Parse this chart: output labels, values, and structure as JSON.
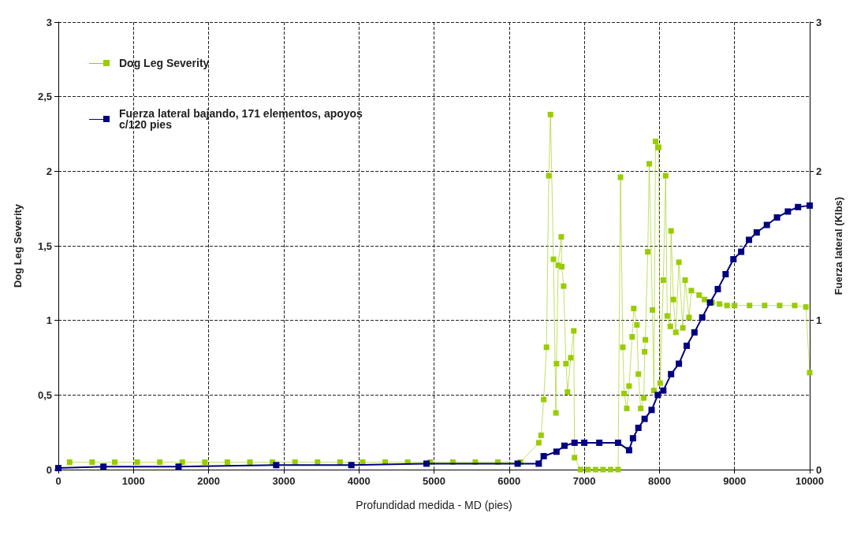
{
  "chart_data": {
    "type": "line",
    "xlabel": "Profundidad medida - MD (pies)",
    "ylabel": "Dog Leg Severity",
    "y2label": "Fuerza lateral (Klbs)",
    "xlim": [
      0,
      10000
    ],
    "xticks": [
      0,
      1000,
      2000,
      3000,
      4000,
      5000,
      6000,
      7000,
      8000,
      9000,
      10000
    ],
    "ylim": [
      0,
      3
    ],
    "yticks": [
      0,
      {
        "value": 0.5,
        "label": "0,5"
      },
      1,
      {
        "value": 1.5,
        "label": "1,5"
      },
      2,
      {
        "value": 2.5,
        "label": "2,5"
      },
      3
    ],
    "y2lim": [
      0,
      3
    ],
    "y2ticks": [
      0,
      1,
      2,
      3
    ],
    "grid": true,
    "legend": "top left",
    "marker": "square",
    "line_style": "solid",
    "series": [
      {
        "name": "Dog Leg Severity",
        "color": "#99cc00",
        "x": [
          150,
          450,
          750,
          1050,
          1350,
          1650,
          1950,
          2250,
          2550,
          2850,
          3150,
          3450,
          3750,
          4050,
          4350,
          4650,
          4950,
          5250,
          5550,
          5850,
          6150,
          6394,
          6425,
          6460,
          6497,
          6528,
          6550,
          6590,
          6622,
          6630,
          6653,
          6694,
          6700,
          6725,
          6756,
          6777,
          6820,
          6860,
          6870,
          6950,
          7050,
          7150,
          7250,
          7350,
          7450,
          7482,
          7513,
          7530,
          7565,
          7596,
          7637,
          7658,
          7700,
          7720,
          7751,
          7793,
          7803,
          7813,
          7845,
          7865,
          7907,
          7927,
          7948,
          7980,
          7990,
          8010,
          8052,
          8083,
          8104,
          8145,
          8155,
          8186,
          8218,
          8259,
          8311,
          8342,
          8394,
          8425,
          8529,
          8600,
          8700,
          8800,
          8900,
          9000,
          9200,
          9400,
          9600,
          9800,
          9950,
          10000
        ],
        "values": [
          0.05,
          0.05,
          0.05,
          0.05,
          0.05,
          0.05,
          0.05,
          0.05,
          0.05,
          0.05,
          0.05,
          0.05,
          0.05,
          0.05,
          0.05,
          0.05,
          0.05,
          0.05,
          0.05,
          0.05,
          0.05,
          0.18,
          0.23,
          0.47,
          0.82,
          1.97,
          2.38,
          1.41,
          0.38,
          0.71,
          1.37,
          1.56,
          1.36,
          1.23,
          0.71,
          0.52,
          0.75,
          0.93,
          0.08,
          0,
          0,
          0,
          0,
          0,
          0,
          1.96,
          0.82,
          0.51,
          0.41,
          0.56,
          0.89,
          1.08,
          0.97,
          0.64,
          0.41,
          0.48,
          0.79,
          0.87,
          1.46,
          2.05,
          1.07,
          0.53,
          2.2,
          2.16,
          2.16,
          0.58,
          1.27,
          1.97,
          1.03,
          0.96,
          1.6,
          1.14,
          0.92,
          1.39,
          0.95,
          1.27,
          1.02,
          1.2,
          1.17,
          1.14,
          1.12,
          1.11,
          1.1,
          1.1,
          1.1,
          1.1,
          1.1,
          1.1,
          1.09,
          0.65
        ]
      },
      {
        "name": "Fuerza lateral bajando, 171 elementos, apoyos c/120 pies",
        "color": "#000080",
        "axis": "y2",
        "x": [
          0,
          600,
          1600,
          2900,
          3900,
          4900,
          6113,
          6394,
          6460,
          6630,
          6736,
          6870,
          7000,
          7200,
          7450,
          7596,
          7648,
          7720,
          7803,
          7896,
          7979,
          8052,
          8155,
          8259,
          8363,
          8466,
          8570,
          8674,
          8777,
          8881,
          8985,
          9088,
          9192,
          9295,
          9430,
          9565,
          9710,
          9845,
          10000
        ],
        "values": [
          0.01,
          0.02,
          0.02,
          0.03,
          0.03,
          0.04,
          0.04,
          0.04,
          0.09,
          0.12,
          0.16,
          0.18,
          0.18,
          0.18,
          0.18,
          0.13,
          0.21,
          0.28,
          0.34,
          0.4,
          0.5,
          0.53,
          0.64,
          0.71,
          0.83,
          0.92,
          1.02,
          1.12,
          1.21,
          1.31,
          1.41,
          1.46,
          1.54,
          1.59,
          1.64,
          1.69,
          1.73,
          1.76,
          1.77
        ]
      }
    ]
  }
}
